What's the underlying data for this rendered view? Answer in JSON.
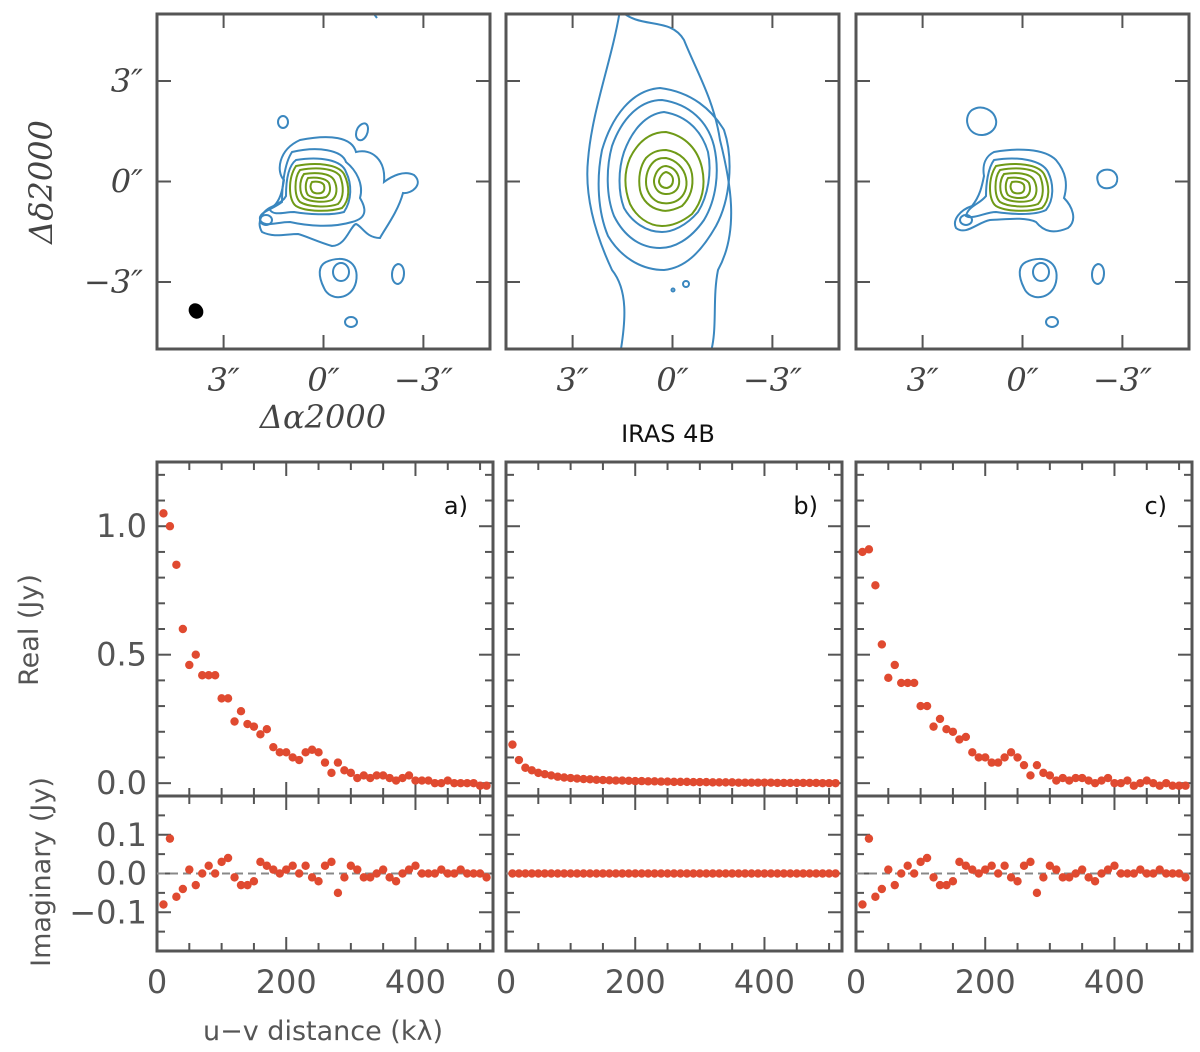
{
  "figure_title": "IRAS 4B",
  "colors": {
    "frame": "#555555",
    "contour_outer": "#3a87bf",
    "contour_inner": "#6f9a17",
    "points": "#e04a30",
    "zero_line": "#888888",
    "beam": "#000000"
  },
  "chart_data": [
    {
      "type": "contour",
      "panel": 1,
      "xlabel": "Δα2000",
      "ylabel": "Δδ2000",
      "x_ticks": [
        "3″",
        "0″",
        "−3″"
      ],
      "y_ticks": [
        "3″",
        "0″",
        "−3″"
      ],
      "xlim": [
        5,
        -5
      ],
      "ylim": [
        -5,
        5
      ],
      "beam_shown": true
    },
    {
      "type": "contour",
      "panel": 2,
      "x_ticks": [
        "3″",
        "0″",
        "−3″"
      ],
      "xlim": [
        5,
        -5
      ],
      "ylim": [
        -5,
        5
      ]
    },
    {
      "type": "contour",
      "panel": 3,
      "x_ticks": [
        "3″",
        "0″",
        "−3″"
      ],
      "xlim": [
        5,
        -5
      ],
      "ylim": [
        -5,
        5
      ]
    },
    {
      "type": "scatter",
      "panel_label": "a)",
      "xlabel": "u−v distance (kλ)",
      "ylabel_real": "Real (Jy)",
      "ylabel_imag": "Imaginary (Jy)",
      "xlim": [
        0,
        520
      ],
      "ylim_real": [
        -0.05,
        1.25
      ],
      "ylim_imag": [
        -0.2,
        0.2
      ],
      "x_ticks": [
        "0",
        "200",
        "400"
      ],
      "real_ticks": [
        "0.0",
        "0.5",
        "1.0"
      ],
      "imag_ticks": [
        "−0.1",
        "0.0",
        "0.1"
      ],
      "x": [
        10,
        20,
        30,
        40,
        50,
        60,
        70,
        80,
        90,
        100,
        110,
        120,
        130,
        140,
        150,
        160,
        170,
        180,
        190,
        200,
        210,
        220,
        230,
        240,
        250,
        260,
        270,
        280,
        290,
        300,
        310,
        320,
        330,
        340,
        350,
        360,
        370,
        380,
        390,
        400,
        410,
        420,
        430,
        440,
        450,
        460,
        470,
        480,
        490,
        500,
        510
      ],
      "real": [
        1.05,
        1.0,
        0.85,
        0.6,
        0.46,
        0.5,
        0.42,
        0.42,
        0.42,
        0.33,
        0.33,
        0.24,
        0.28,
        0.23,
        0.22,
        0.19,
        0.21,
        0.14,
        0.12,
        0.12,
        0.1,
        0.09,
        0.12,
        0.13,
        0.12,
        0.08,
        0.04,
        0.08,
        0.05,
        0.04,
        0.02,
        0.03,
        0.02,
        0.03,
        0.03,
        0.02,
        0.01,
        0.02,
        0.03,
        0.01,
        0.01,
        0.01,
        0.0,
        0.0,
        0.01,
        0.0,
        0.0,
        0.0,
        0.0,
        -0.01,
        -0.01
      ],
      "imag": [
        -0.08,
        0.09,
        -0.06,
        -0.04,
        0.01,
        -0.03,
        0.0,
        0.02,
        0.0,
        0.03,
        0.04,
        -0.01,
        -0.03,
        -0.03,
        -0.02,
        0.03,
        0.02,
        0.01,
        0.0,
        0.01,
        0.02,
        0.0,
        0.02,
        -0.01,
        -0.02,
        0.02,
        0.03,
        -0.05,
        -0.01,
        0.02,
        0.01,
        -0.01,
        -0.01,
        0.0,
        0.01,
        -0.01,
        -0.02,
        0.0,
        0.01,
        0.02,
        0.0,
        0.0,
        0.0,
        0.01,
        0.0,
        0.0,
        0.01,
        0.0,
        0.0,
        0.0,
        -0.01
      ]
    },
    {
      "type": "scatter",
      "panel_label": "b)",
      "xlim": [
        0,
        520
      ],
      "ylim_real": [
        -0.05,
        1.25
      ],
      "ylim_imag": [
        -0.2,
        0.2
      ],
      "x_ticks": [
        "0",
        "200",
        "400"
      ],
      "x": [
        10,
        20,
        30,
        40,
        50,
        60,
        70,
        80,
        90,
        100,
        110,
        120,
        130,
        140,
        150,
        160,
        170,
        180,
        190,
        200,
        210,
        220,
        230,
        240,
        250,
        260,
        270,
        280,
        290,
        300,
        310,
        320,
        330,
        340,
        350,
        360,
        370,
        380,
        390,
        400,
        410,
        420,
        430,
        440,
        450,
        460,
        470,
        480,
        490,
        500,
        510
      ],
      "real": [
        0.15,
        0.09,
        0.06,
        0.05,
        0.04,
        0.035,
        0.03,
        0.025,
        0.022,
        0.02,
        0.018,
        0.016,
        0.015,
        0.013,
        0.012,
        0.011,
        0.01,
        0.01,
        0.009,
        0.008,
        0.008,
        0.007,
        0.007,
        0.006,
        0.006,
        0.005,
        0.005,
        0.005,
        0.004,
        0.004,
        0.004,
        0.003,
        0.003,
        0.003,
        0.003,
        0.002,
        0.002,
        0.002,
        0.002,
        0.002,
        0.002,
        0.001,
        0.001,
        0.001,
        0.001,
        0.001,
        0.001,
        0.001,
        0.0,
        0.0,
        0.0
      ],
      "imag": [
        0,
        0,
        0,
        0,
        0,
        0,
        0,
        0,
        0,
        0,
        0,
        0,
        0,
        0,
        0,
        0,
        0,
        0,
        0,
        0,
        0,
        0,
        0,
        0,
        0,
        0,
        0,
        0,
        0,
        0,
        0,
        0,
        0,
        0,
        0,
        0,
        0,
        0,
        0,
        0,
        0,
        0,
        0,
        0,
        0,
        0,
        0,
        0,
        0,
        0,
        0
      ]
    },
    {
      "type": "scatter",
      "panel_label": "c)",
      "xlim": [
        0,
        520
      ],
      "ylim_real": [
        -0.05,
        1.25
      ],
      "ylim_imag": [
        -0.2,
        0.2
      ],
      "x_ticks": [
        "0",
        "200",
        "400"
      ],
      "x": [
        10,
        20,
        30,
        40,
        50,
        60,
        70,
        80,
        90,
        100,
        110,
        120,
        130,
        140,
        150,
        160,
        170,
        180,
        190,
        200,
        210,
        220,
        230,
        240,
        250,
        260,
        270,
        280,
        290,
        300,
        310,
        320,
        330,
        340,
        350,
        360,
        370,
        380,
        390,
        400,
        410,
        420,
        430,
        440,
        450,
        460,
        470,
        480,
        490,
        500,
        510
      ],
      "real": [
        0.9,
        0.91,
        0.77,
        0.54,
        0.41,
        0.46,
        0.39,
        0.39,
        0.39,
        0.3,
        0.3,
        0.22,
        0.25,
        0.21,
        0.2,
        0.17,
        0.18,
        0.12,
        0.1,
        0.1,
        0.08,
        0.08,
        0.1,
        0.12,
        0.1,
        0.07,
        0.03,
        0.07,
        0.04,
        0.03,
        0.01,
        0.02,
        0.01,
        0.02,
        0.02,
        0.01,
        0.0,
        0.01,
        0.02,
        0.0,
        0.0,
        0.01,
        -0.01,
        0.0,
        0.01,
        0.0,
        -0.01,
        0.0,
        -0.01,
        -0.01,
        -0.01
      ],
      "imag": [
        -0.08,
        0.09,
        -0.06,
        -0.04,
        0.01,
        -0.03,
        0.0,
        0.02,
        0.0,
        0.03,
        0.04,
        -0.01,
        -0.03,
        -0.03,
        -0.02,
        0.03,
        0.02,
        0.01,
        0.0,
        0.01,
        0.02,
        0.0,
        0.02,
        -0.01,
        -0.02,
        0.02,
        0.03,
        -0.05,
        -0.01,
        0.02,
        0.01,
        -0.01,
        -0.01,
        0.0,
        0.01,
        -0.01,
        -0.02,
        0.0,
        0.01,
        0.02,
        0.0,
        0.0,
        0.0,
        0.01,
        0.0,
        0.0,
        0.01,
        0.0,
        0.0,
        0.0,
        -0.01
      ]
    }
  ]
}
